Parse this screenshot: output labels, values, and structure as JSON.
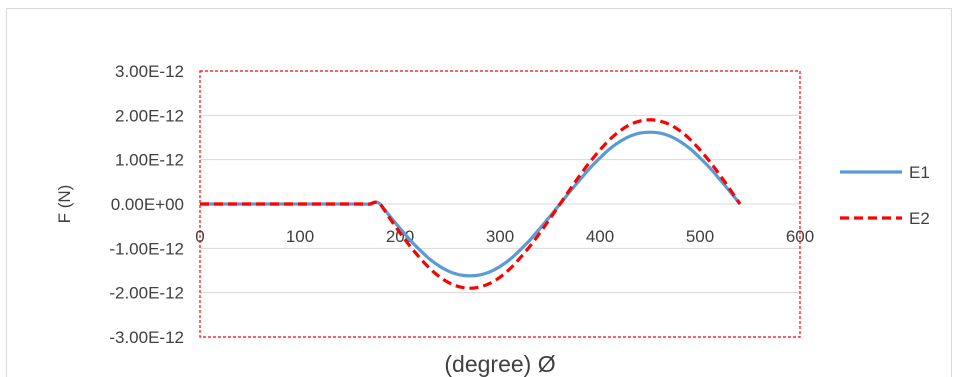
{
  "chart_data": {
    "type": "line",
    "title": "",
    "xlabel": "(degree) Ø",
    "ylabel": "F (N)",
    "xlim": [
      0,
      600
    ],
    "ylim": [
      -3e-12,
      3e-12
    ],
    "x_ticks": [
      "0",
      "100",
      "200",
      "300",
      "400",
      "500",
      "600"
    ],
    "y_ticks": [
      "3.00E-12",
      "2.00E-12",
      "1.00E-12",
      "0.00E+00",
      "-1.00E-12",
      "-2.00E-12",
      "-3.00E-12"
    ],
    "grid": true,
    "legend_position": "right",
    "x": [
      0,
      20,
      40,
      60,
      80,
      100,
      120,
      140,
      160,
      170,
      175,
      180,
      190,
      200,
      210,
      220,
      230,
      240,
      250,
      260,
      270,
      280,
      290,
      300,
      310,
      320,
      330,
      340,
      350,
      360,
      370,
      380,
      390,
      400,
      410,
      420,
      430,
      440,
      450,
      460,
      470,
      480,
      490,
      500,
      510,
      520,
      530,
      540
    ],
    "series": [
      {
        "name": "E1",
        "color": "#5b9bd5",
        "style": "solid",
        "values": [
          0,
          0,
          0,
          0,
          0,
          0,
          0,
          0,
          0,
          0,
          4e-14,
          0,
          -2.8e-13,
          -5.5e-13,
          -8.1e-13,
          -1.04e-12,
          -1.25e-12,
          -1.41e-12,
          -1.53e-12,
          -1.6e-12,
          -1.62e-12,
          -1.6e-12,
          -1.53e-12,
          -1.41e-12,
          -1.25e-12,
          -1.04e-12,
          -8.1e-13,
          -5.5e-13,
          -2.8e-13,
          0,
          2.8e-13,
          5.5e-13,
          8.1e-13,
          1.04e-12,
          1.25e-12,
          1.41e-12,
          1.53e-12,
          1.6e-12,
          1.62e-12,
          1.6e-12,
          1.53e-12,
          1.41e-12,
          1.25e-12,
          1.04e-12,
          8.1e-13,
          5.5e-13,
          2.8e-13,
          0
        ]
      },
      {
        "name": "E2",
        "color": "#ff0000",
        "style": "dashed",
        "values": [
          0,
          0,
          0,
          0,
          0,
          0,
          0,
          0,
          0,
          0,
          4e-14,
          0,
          -3.3e-13,
          -6.5e-13,
          -9.5e-13,
          -1.22e-12,
          -1.46e-12,
          -1.65e-12,
          -1.79e-12,
          -1.87e-12,
          -1.9e-12,
          -1.87e-12,
          -1.79e-12,
          -1.65e-12,
          -1.46e-12,
          -1.22e-12,
          -9.5e-13,
          -6.5e-13,
          -3.3e-13,
          0,
          3.3e-13,
          6.5e-13,
          9.5e-13,
          1.22e-12,
          1.46e-12,
          1.65e-12,
          1.79e-12,
          1.87e-12,
          1.9e-12,
          1.87e-12,
          1.79e-12,
          1.65e-12,
          1.46e-12,
          1.22e-12,
          9.5e-13,
          6.5e-13,
          3.3e-13,
          0
        ]
      }
    ]
  }
}
